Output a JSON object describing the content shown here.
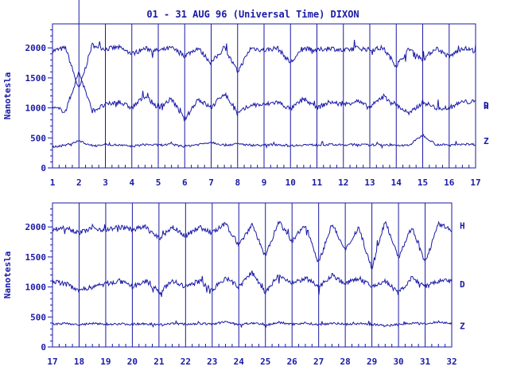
{
  "chart_data": [
    {
      "type": "line",
      "title": "01 - 31 AUG 96 (Universal Time) DIXON",
      "ylabel": "Nanotesla",
      "xlim": [
        1,
        17
      ],
      "ylim": [
        0,
        2400
      ],
      "y_ticks": [
        0,
        500,
        1000,
        1500,
        2000
      ],
      "x_ticks": [
        "1",
        "2",
        "3",
        "4",
        "5",
        "6",
        "7",
        "8",
        "9",
        "10",
        "11",
        "12",
        "13",
        "14",
        "15",
        "16",
        "17"
      ],
      "grid": "vertical day lines",
      "series": [
        {
          "name": "H",
          "baseline": 2000,
          "label_y": 1035,
          "x": [
            1,
            1.5,
            2,
            2.5,
            3,
            3.5,
            4,
            4.5,
            5,
            5.5,
            6,
            6.5,
            7,
            7.5,
            8,
            8.5,
            9,
            9.5,
            10,
            10.5,
            11,
            11.5,
            12,
            12.5,
            13,
            13.5,
            14,
            14.5,
            15,
            15.5,
            16,
            16.5,
            17
          ],
          "y": [
            1950,
            2000,
            1300,
            2050,
            1980,
            2010,
            1900,
            1990,
            1950,
            2000,
            1870,
            2000,
            1750,
            2000,
            1600,
            2000,
            1960,
            2000,
            1750,
            1990,
            1960,
            2000,
            1950,
            2000,
            1970,
            2000,
            1700,
            1990,
            1800,
            2000,
            1850,
            2000,
            1950
          ]
        },
        {
          "name": "D",
          "baseline": 1050,
          "label_y": 1050,
          "x": [
            1,
            1.5,
            2,
            2.5,
            3,
            3.5,
            4,
            4.5,
            5,
            5.5,
            6,
            6.5,
            7,
            7.5,
            8,
            8.5,
            9,
            9.5,
            10,
            10.5,
            11,
            11.5,
            12,
            12.5,
            13,
            13.5,
            14,
            14.5,
            15,
            15.5,
            16,
            16.5,
            17
          ],
          "y": [
            1000,
            950,
            1600,
            950,
            1050,
            1100,
            1000,
            1200,
            1000,
            1150,
            800,
            1150,
            1000,
            1250,
            900,
            1050,
            1050,
            1100,
            980,
            1150,
            1000,
            1100,
            1050,
            1120,
            1000,
            1200,
            1050,
            900,
            1100,
            1000,
            1000,
            1100,
            1100
          ]
        },
        {
          "name": "Z",
          "baseline": 380,
          "label_y": 450,
          "x": [
            1,
            1.5,
            2,
            2.5,
            3,
            3.5,
            4,
            4.5,
            5,
            5.5,
            6,
            6.5,
            7,
            7.5,
            8,
            8.5,
            9,
            9.5,
            10,
            10.5,
            11,
            11.5,
            12,
            12.5,
            13,
            13.5,
            14,
            14.5,
            15,
            15.5,
            16,
            16.5,
            17
          ],
          "y": [
            350,
            380,
            450,
            370,
            390,
            380,
            360,
            390,
            380,
            390,
            360,
            390,
            430,
            380,
            400,
            380,
            380,
            390,
            370,
            385,
            380,
            390,
            380,
            390,
            380,
            390,
            370,
            380,
            550,
            390,
            380,
            400,
            390
          ]
        }
      ]
    },
    {
      "type": "line",
      "ylabel": "Nanotesla",
      "xlim": [
        17,
        32
      ],
      "ylim": [
        0,
        2400
      ],
      "y_ticks": [
        0,
        500,
        1000,
        1500,
        2000
      ],
      "x_ticks": [
        "17",
        "18",
        "19",
        "20",
        "21",
        "22",
        "23",
        "24",
        "25",
        "26",
        "27",
        "28",
        "29",
        "30",
        "31",
        "32"
      ],
      "grid": "vertical day lines",
      "series": [
        {
          "name": "H",
          "baseline": 2000,
          "label_y": 2020,
          "x": [
            17,
            17.5,
            18,
            18.5,
            19,
            19.5,
            20,
            20.5,
            21,
            21.5,
            22,
            22.5,
            23,
            23.5,
            24,
            24.5,
            25,
            25.5,
            26,
            26.5,
            27,
            27.5,
            28,
            28.5,
            29,
            29.5,
            30,
            30.5,
            31,
            31.5,
            32
          ],
          "y": [
            1950,
            2000,
            1900,
            1980,
            1950,
            2000,
            1960,
            2000,
            1800,
            2000,
            1850,
            2000,
            1900,
            2050,
            1700,
            2050,
            1500,
            2100,
            1750,
            2050,
            1400,
            2050,
            1600,
            2000,
            1300,
            2100,
            1500,
            2000,
            1400,
            2050,
            1950
          ]
        },
        {
          "name": "D",
          "baseline": 1050,
          "label_y": 1050,
          "x": [
            17,
            17.5,
            18,
            18.5,
            19,
            19.5,
            20,
            20.5,
            21,
            21.5,
            22,
            22.5,
            23,
            23.5,
            24,
            24.5,
            25,
            25.5,
            26,
            26.5,
            27,
            27.5,
            28,
            28.5,
            29,
            29.5,
            30,
            30.5,
            31,
            31.5,
            32
          ],
          "y": [
            1100,
            1050,
            950,
            1000,
            1050,
            1100,
            1000,
            1100,
            900,
            1100,
            1000,
            1100,
            950,
            1150,
            1000,
            1250,
            900,
            1200,
            1050,
            1150,
            1000,
            1200,
            1050,
            1150,
            1000,
            1100,
            900,
            1150,
            1000,
            1100,
            1100
          ]
        },
        {
          "name": "Z",
          "baseline": 380,
          "label_y": 350,
          "x": [
            17,
            17.5,
            18,
            18.5,
            19,
            19.5,
            20,
            20.5,
            21,
            21.5,
            22,
            22.5,
            23,
            23.5,
            24,
            24.5,
            25,
            25.5,
            26,
            26.5,
            27,
            27.5,
            28,
            28.5,
            29,
            29.5,
            30,
            30.5,
            31,
            31.5,
            32
          ],
          "y": [
            380,
            390,
            370,
            390,
            380,
            385,
            380,
            390,
            370,
            390,
            380,
            390,
            380,
            420,
            370,
            400,
            360,
            410,
            380,
            400,
            370,
            400,
            380,
            390,
            380,
            350,
            380,
            400,
            380,
            420,
            390
          ]
        }
      ]
    }
  ]
}
